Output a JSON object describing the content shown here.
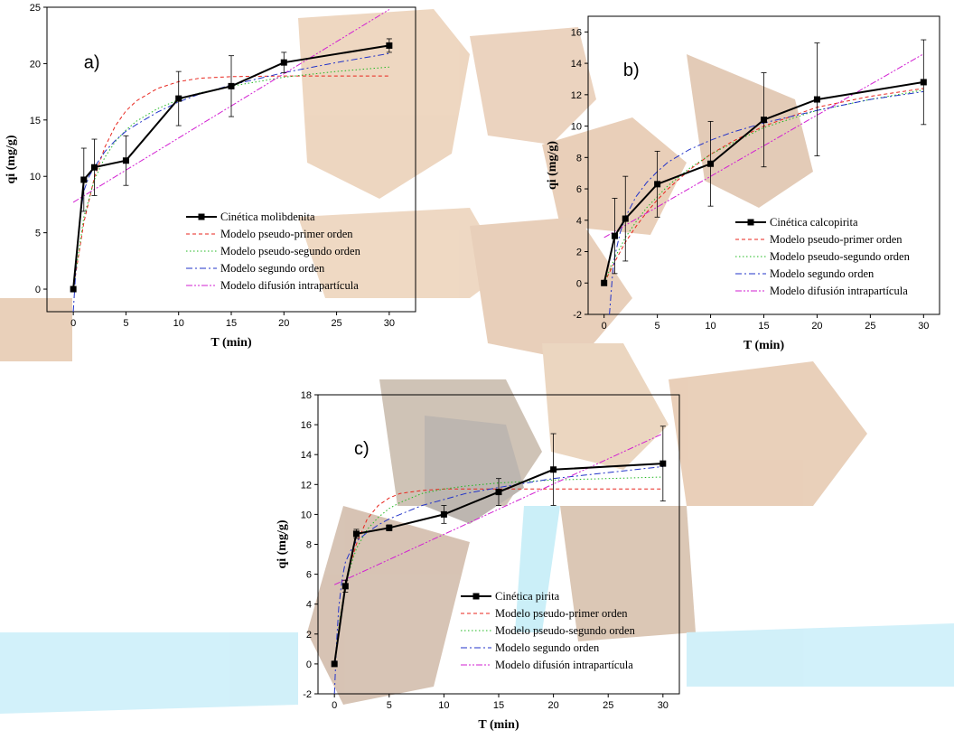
{
  "colors": {
    "experimental": "#000000",
    "pseudo_primer": "#e8261e",
    "pseudo_segundo": "#22b822",
    "segundo": "#2233c8",
    "difusion": "#d21fd2",
    "watermark_brown": "#c98a52",
    "watermark_cyan": "#7fd8f0"
  },
  "chart_data": [
    {
      "type": "line",
      "panel_label": "a)",
      "xlabel": "T (min)",
      "ylabel": "qi (mg/g)",
      "xlim": [
        -2.5,
        32.5
      ],
      "ylim": [
        -2,
        25
      ],
      "xticks": [
        0,
        5,
        10,
        15,
        20,
        25,
        30
      ],
      "yticks": [
        0,
        5,
        10,
        15,
        20,
        25
      ],
      "grid": false,
      "legend_position": "bottom-right",
      "series": [
        {
          "name": "Cinética molibdenita",
          "kind": "experimental",
          "x": [
            0,
            1,
            2,
            5,
            10,
            15,
            20,
            30
          ],
          "y": [
            0,
            9.7,
            10.8,
            11.4,
            16.9,
            18.0,
            20.1,
            21.6
          ],
          "err": [
            0,
            2.8,
            2.5,
            2.2,
            2.4,
            2.7,
            0.9,
            0.6
          ]
        },
        {
          "name": "Modelo pseudo-primer orden",
          "kind": "pseudo_primer",
          "x": [
            0,
            1,
            2,
            3,
            4,
            5,
            6,
            8,
            10,
            12,
            15,
            20,
            25,
            30
          ],
          "y": [
            0,
            5.9,
            9.9,
            12.6,
            14.5,
            15.8,
            16.7,
            17.8,
            18.4,
            18.7,
            18.85,
            18.9,
            18.9,
            18.9
          ]
        },
        {
          "name": "Modelo pseudo-segundo orden",
          "kind": "pseudo_segundo",
          "x": [
            0,
            1,
            2,
            3,
            4,
            5,
            6,
            8,
            10,
            12,
            15,
            20,
            25,
            30
          ],
          "y": [
            0,
            6.4,
            9.7,
            11.7,
            13.1,
            14.1,
            14.9,
            16.0,
            16.8,
            17.4,
            18.0,
            18.8,
            19.3,
            19.7
          ]
        },
        {
          "name": "Modelo segundo orden",
          "kind": "segundo",
          "x": [
            0,
            0.3,
            0.6,
            1,
            1.5,
            2,
            3,
            4,
            5,
            6,
            8,
            10,
            12,
            15,
            20,
            25,
            30
          ],
          "y": [
            -2,
            2.5,
            6.0,
            8.7,
            10.0,
            10.8,
            12.2,
            13.2,
            14.0,
            14.6,
            15.7,
            16.6,
            17.3,
            18.1,
            19.2,
            20.1,
            20.9
          ]
        },
        {
          "name": "Modelo difusión intrapartícula",
          "kind": "difusion",
          "x": [
            0,
            30
          ],
          "y": [
            7.7,
            24.8
          ]
        }
      ]
    },
    {
      "type": "line",
      "panel_label": "b)",
      "xlabel": "T (min)",
      "ylabel": "qi (mg/g)",
      "xlim": [
        -1.5,
        31.5
      ],
      "ylim": [
        -2,
        17
      ],
      "xticks": [
        0,
        5,
        10,
        15,
        20,
        25,
        30
      ],
      "yticks": [
        -2,
        0,
        2,
        4,
        6,
        8,
        10,
        12,
        14,
        16
      ],
      "grid": false,
      "legend_position": "bottom-right",
      "series": [
        {
          "name": "Cinética calcopirita",
          "kind": "experimental",
          "x": [
            0,
            1,
            2,
            5,
            10,
            15,
            20,
            30
          ],
          "y": [
            0,
            3.0,
            4.1,
            6.3,
            7.6,
            10.4,
            11.7,
            12.8
          ],
          "err": [
            0,
            2.4,
            2.7,
            2.1,
            2.7,
            3.0,
            3.6,
            2.7
          ]
        },
        {
          "name": "Modelo pseudo-primer orden",
          "kind": "pseudo_primer",
          "x": [
            0,
            1,
            2,
            3,
            4,
            5,
            6,
            8,
            10,
            12,
            15,
            20,
            25,
            30
          ],
          "y": [
            0,
            1.35,
            2.6,
            3.6,
            4.5,
            5.3,
            6.0,
            7.2,
            8.2,
            9.0,
            10.0,
            11.2,
            11.9,
            12.4
          ]
        },
        {
          "name": "Modelo pseudo-segundo orden",
          "kind": "pseudo_segundo",
          "x": [
            0,
            1,
            2,
            3,
            4,
            5,
            6,
            8,
            10,
            12,
            15,
            20,
            25,
            30
          ],
          "y": [
            0,
            1.6,
            2.9,
            3.9,
            4.8,
            5.5,
            6.2,
            7.3,
            8.2,
            8.9,
            9.9,
            11.0,
            11.7,
            12.3
          ]
        },
        {
          "name": "Modelo segundo orden",
          "kind": "segundo",
          "x": [
            0.5,
            0.8,
            1,
            1.5,
            2,
            3,
            4,
            5,
            6,
            8,
            10,
            12,
            15,
            20,
            25,
            30
          ],
          "y": [
            -2,
            0.6,
            1.7,
            3.2,
            4.2,
            5.5,
            6.4,
            7.1,
            7.7,
            8.5,
            9.1,
            9.6,
            10.2,
            11.0,
            11.7,
            12.2
          ]
        },
        {
          "name": "Modelo difusión intrapartícula",
          "kind": "difusion",
          "x": [
            0,
            30
          ],
          "y": [
            2.9,
            14.6
          ]
        }
      ]
    },
    {
      "type": "line",
      "panel_label": "c)",
      "xlabel": "T (min)",
      "ylabel": "qi (mg/g)",
      "xlim": [
        -1.5,
        31.5
      ],
      "ylim": [
        -2,
        18
      ],
      "xticks": [
        0,
        5,
        10,
        15,
        20,
        25,
        30
      ],
      "yticks": [
        -2,
        0,
        2,
        4,
        6,
        8,
        10,
        12,
        14,
        16,
        18
      ],
      "grid": false,
      "legend_position": "bottom-right",
      "series": [
        {
          "name": "Cinética pirita",
          "kind": "experimental",
          "x": [
            0,
            1,
            2,
            5,
            10,
            15,
            20,
            30
          ],
          "y": [
            0,
            5.2,
            8.7,
            9.1,
            10.0,
            11.5,
            13.0,
            13.4
          ],
          "err": [
            0,
            0.4,
            0.3,
            0.2,
            0.6,
            0.9,
            2.4,
            2.5
          ]
        },
        {
          "name": "Modelo pseudo-primer orden",
          "kind": "pseudo_primer",
          "x": [
            0,
            0.5,
            1,
            1.5,
            2,
            3,
            4,
            5,
            6,
            8,
            10,
            15,
            20,
            25,
            30
          ],
          "y": [
            0,
            2.9,
            5.1,
            6.8,
            8.0,
            9.7,
            10.6,
            11.1,
            11.4,
            11.6,
            11.7,
            11.7,
            11.7,
            11.7,
            11.7
          ]
        },
        {
          "name": "Modelo pseudo-segundo orden",
          "kind": "pseudo_segundo",
          "x": [
            0,
            0.5,
            1,
            1.5,
            2,
            3,
            4,
            5,
            6,
            8,
            10,
            12,
            15,
            20,
            25,
            30
          ],
          "y": [
            0,
            3.0,
            5.2,
            6.6,
            7.7,
            9.0,
            9.8,
            10.4,
            10.8,
            11.4,
            11.7,
            11.9,
            12.1,
            12.3,
            12.4,
            12.5
          ]
        },
        {
          "name": "Modelo segundo orden",
          "kind": "segundo",
          "x": [
            0,
            0.2,
            0.4,
            0.7,
            1,
            1.5,
            2,
            3,
            4,
            5,
            6,
            8,
            10,
            12,
            15,
            20,
            25,
            30
          ],
          "y": [
            -2,
            1.5,
            3.8,
            5.7,
            6.8,
            7.6,
            8.2,
            8.8,
            9.3,
            9.7,
            10.0,
            10.6,
            11.0,
            11.4,
            11.8,
            12.4,
            12.8,
            13.2
          ]
        },
        {
          "name": "Modelo difusión intrapartícula",
          "kind": "difusion",
          "x": [
            0,
            30
          ],
          "y": [
            5.3,
            15.4
          ]
        }
      ]
    }
  ]
}
